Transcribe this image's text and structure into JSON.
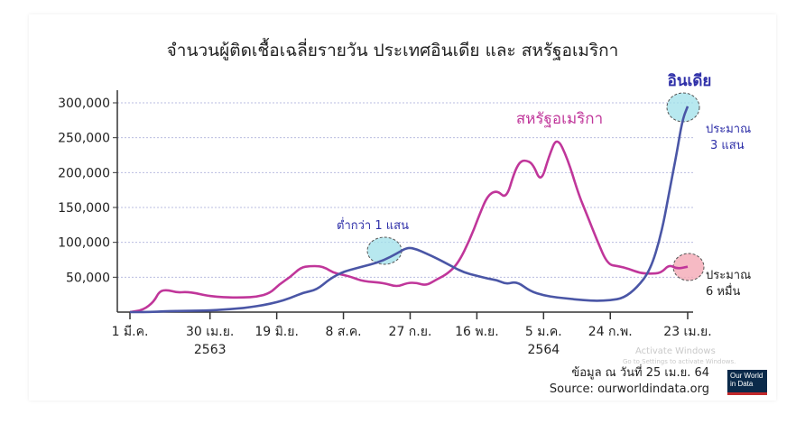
{
  "chart_data": {
    "type": "line",
    "title": "จำนวนผู้ติดเชื้อเฉลี่ยรายวัน ประเทศอินเดีย และ สหรัฐอเมริกา",
    "ylim": [
      0,
      300000
    ],
    "y_ticks": [
      "300,000",
      "250,000",
      "200,000",
      "150,000",
      "100,000",
      "50,000"
    ],
    "y_tick_values": [
      300000,
      250000,
      200000,
      150000,
      100000,
      50000
    ],
    "x_ticks": [
      {
        "label": "1 มี.ค.",
        "sub": "",
        "day": 0
      },
      {
        "label": "30 เม.ย.",
        "sub": "2563",
        "day": 60
      },
      {
        "label": "19 มิ.ย.",
        "sub": "",
        "day": 110
      },
      {
        "label": "8 ส.ค.",
        "sub": "",
        "day": 160
      },
      {
        "label": "27 ก.ย.",
        "sub": "",
        "day": 210
      },
      {
        "label": "16 พ.ย.",
        "sub": "",
        "day": 260
      },
      {
        "label": "5 ม.ค.",
        "sub": "2564",
        "day": 310
      },
      {
        "label": "24 ก.พ.",
        "sub": "",
        "day": 360
      },
      {
        "label": "23 เม.ย.",
        "sub": "",
        "day": 418
      }
    ],
    "grid": true,
    "series": [
      {
        "name": "สหรัฐอเมริกา",
        "color": "#c0369a",
        "x": [
          0,
          10,
          18,
          22,
          28,
          35,
          42,
          50,
          56,
          65,
          75,
          85,
          95,
          105,
          112,
          120,
          128,
          135,
          142,
          147,
          152,
          158,
          165,
          175,
          190,
          200,
          208,
          215,
          222,
          230,
          238,
          246,
          255,
          262,
          268,
          275,
          282,
          288,
          292,
          296,
          302,
          308,
          314,
          320,
          328,
          336,
          342,
          350,
          358,
          366,
          374,
          382,
          390,
          398,
          404,
          410,
          418
        ],
        "y": [
          0,
          3000,
          15000,
          30000,
          32000,
          28000,
          29000,
          27000,
          24000,
          22000,
          21000,
          21000,
          22000,
          27000,
          40000,
          50000,
          64000,
          66000,
          66000,
          63000,
          57000,
          54000,
          51000,
          44000,
          42000,
          36000,
          42000,
          42000,
          38000,
          47000,
          55000,
          70000,
          105000,
          140000,
          167000,
          175000,
          162000,
          200000,
          215000,
          218000,
          213000,
          185000,
          223000,
          252000,
          220000,
          170000,
          142000,
          103000,
          68000,
          66000,
          62000,
          56000,
          55000,
          56000,
          68000,
          62000,
          65000
        ]
      },
      {
        "name": "อินเดีย",
        "color": "#4a56a6",
        "x": [
          0,
          10,
          20,
          30,
          40,
          50,
          60,
          70,
          80,
          90,
          100,
          110,
          120,
          130,
          140,
          150,
          160,
          170,
          180,
          190,
          200,
          208,
          215,
          222,
          230,
          240,
          250,
          260,
          268,
          275,
          282,
          290,
          300,
          310,
          320,
          330,
          340,
          350,
          360,
          370,
          380,
          390,
          398,
          404,
          410,
          414,
          418
        ],
        "y": [
          0,
          0,
          500,
          1500,
          1700,
          2000,
          2500,
          3500,
          5000,
          7000,
          10000,
          14000,
          20000,
          28000,
          32000,
          48000,
          58000,
          63000,
          68000,
          74000,
          84000,
          93000,
          90000,
          84000,
          77000,
          67000,
          57000,
          52000,
          48000,
          46000,
          40000,
          44000,
          30000,
          24000,
          21000,
          19000,
          17000,
          16000,
          17000,
          20000,
          35000,
          60000,
          110000,
          170000,
          230000,
          275000,
          295000
        ]
      }
    ],
    "annotations": {
      "india_label": "อินเดีย",
      "usa_label": "สหรัฐอเมริกา",
      "peak_note": "ต่ำกว่า 1 แสน",
      "india_end_line1": "ประมาณ",
      "india_end_line2": "3 แสน",
      "usa_end_line1": "ประมาณ",
      "usa_end_line2": "6 หมื่น"
    },
    "footnote": "ข้อมูล ณ วันที่ 25 เม.ย. 64",
    "source": "Source: ourworldindata.org"
  },
  "watermark": {
    "line1": "Activate Windows",
    "line2": "Go to Settings to activate Windows."
  },
  "logo": {
    "line1": "Our World",
    "line2": "in Data"
  }
}
